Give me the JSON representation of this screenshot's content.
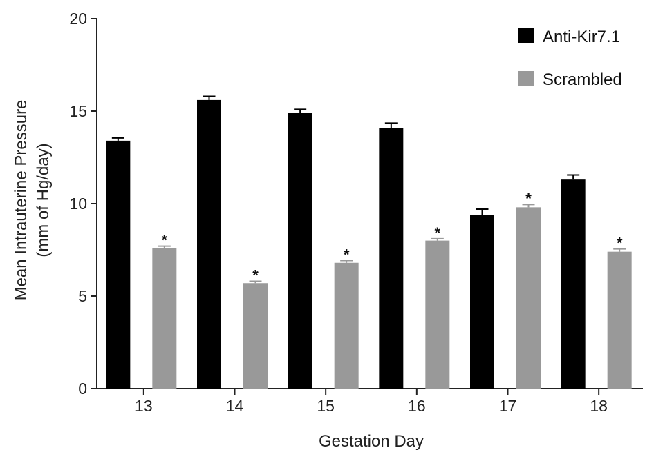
{
  "chart_data": {
    "type": "bar",
    "xlabel": "Gestation Day",
    "ylabel_line1": "Mean Intrauterine Pressure",
    "ylabel_line2": "(mm of Hg/day)",
    "ylim": [
      0,
      20
    ],
    "yticks": [
      0,
      5,
      10,
      15,
      20
    ],
    "categories": [
      "13",
      "14",
      "15",
      "16",
      "17",
      "18"
    ],
    "series": [
      {
        "name": "Anti-Kir7.1",
        "color": "#000000",
        "values": [
          13.4,
          15.6,
          14.9,
          14.1,
          9.4,
          11.3
        ],
        "errors": [
          0.15,
          0.2,
          0.2,
          0.25,
          0.3,
          0.25
        ]
      },
      {
        "name": "Scrambled",
        "color": "#999999",
        "values": [
          7.6,
          5.7,
          6.8,
          8.0,
          9.8,
          7.4
        ],
        "errors": [
          0.1,
          0.1,
          0.12,
          0.1,
          0.15,
          0.15
        ],
        "annotations": [
          "*",
          "*",
          "*",
          "*",
          "*",
          "*"
        ]
      }
    ],
    "legend_position": "top-right",
    "grid": false
  }
}
